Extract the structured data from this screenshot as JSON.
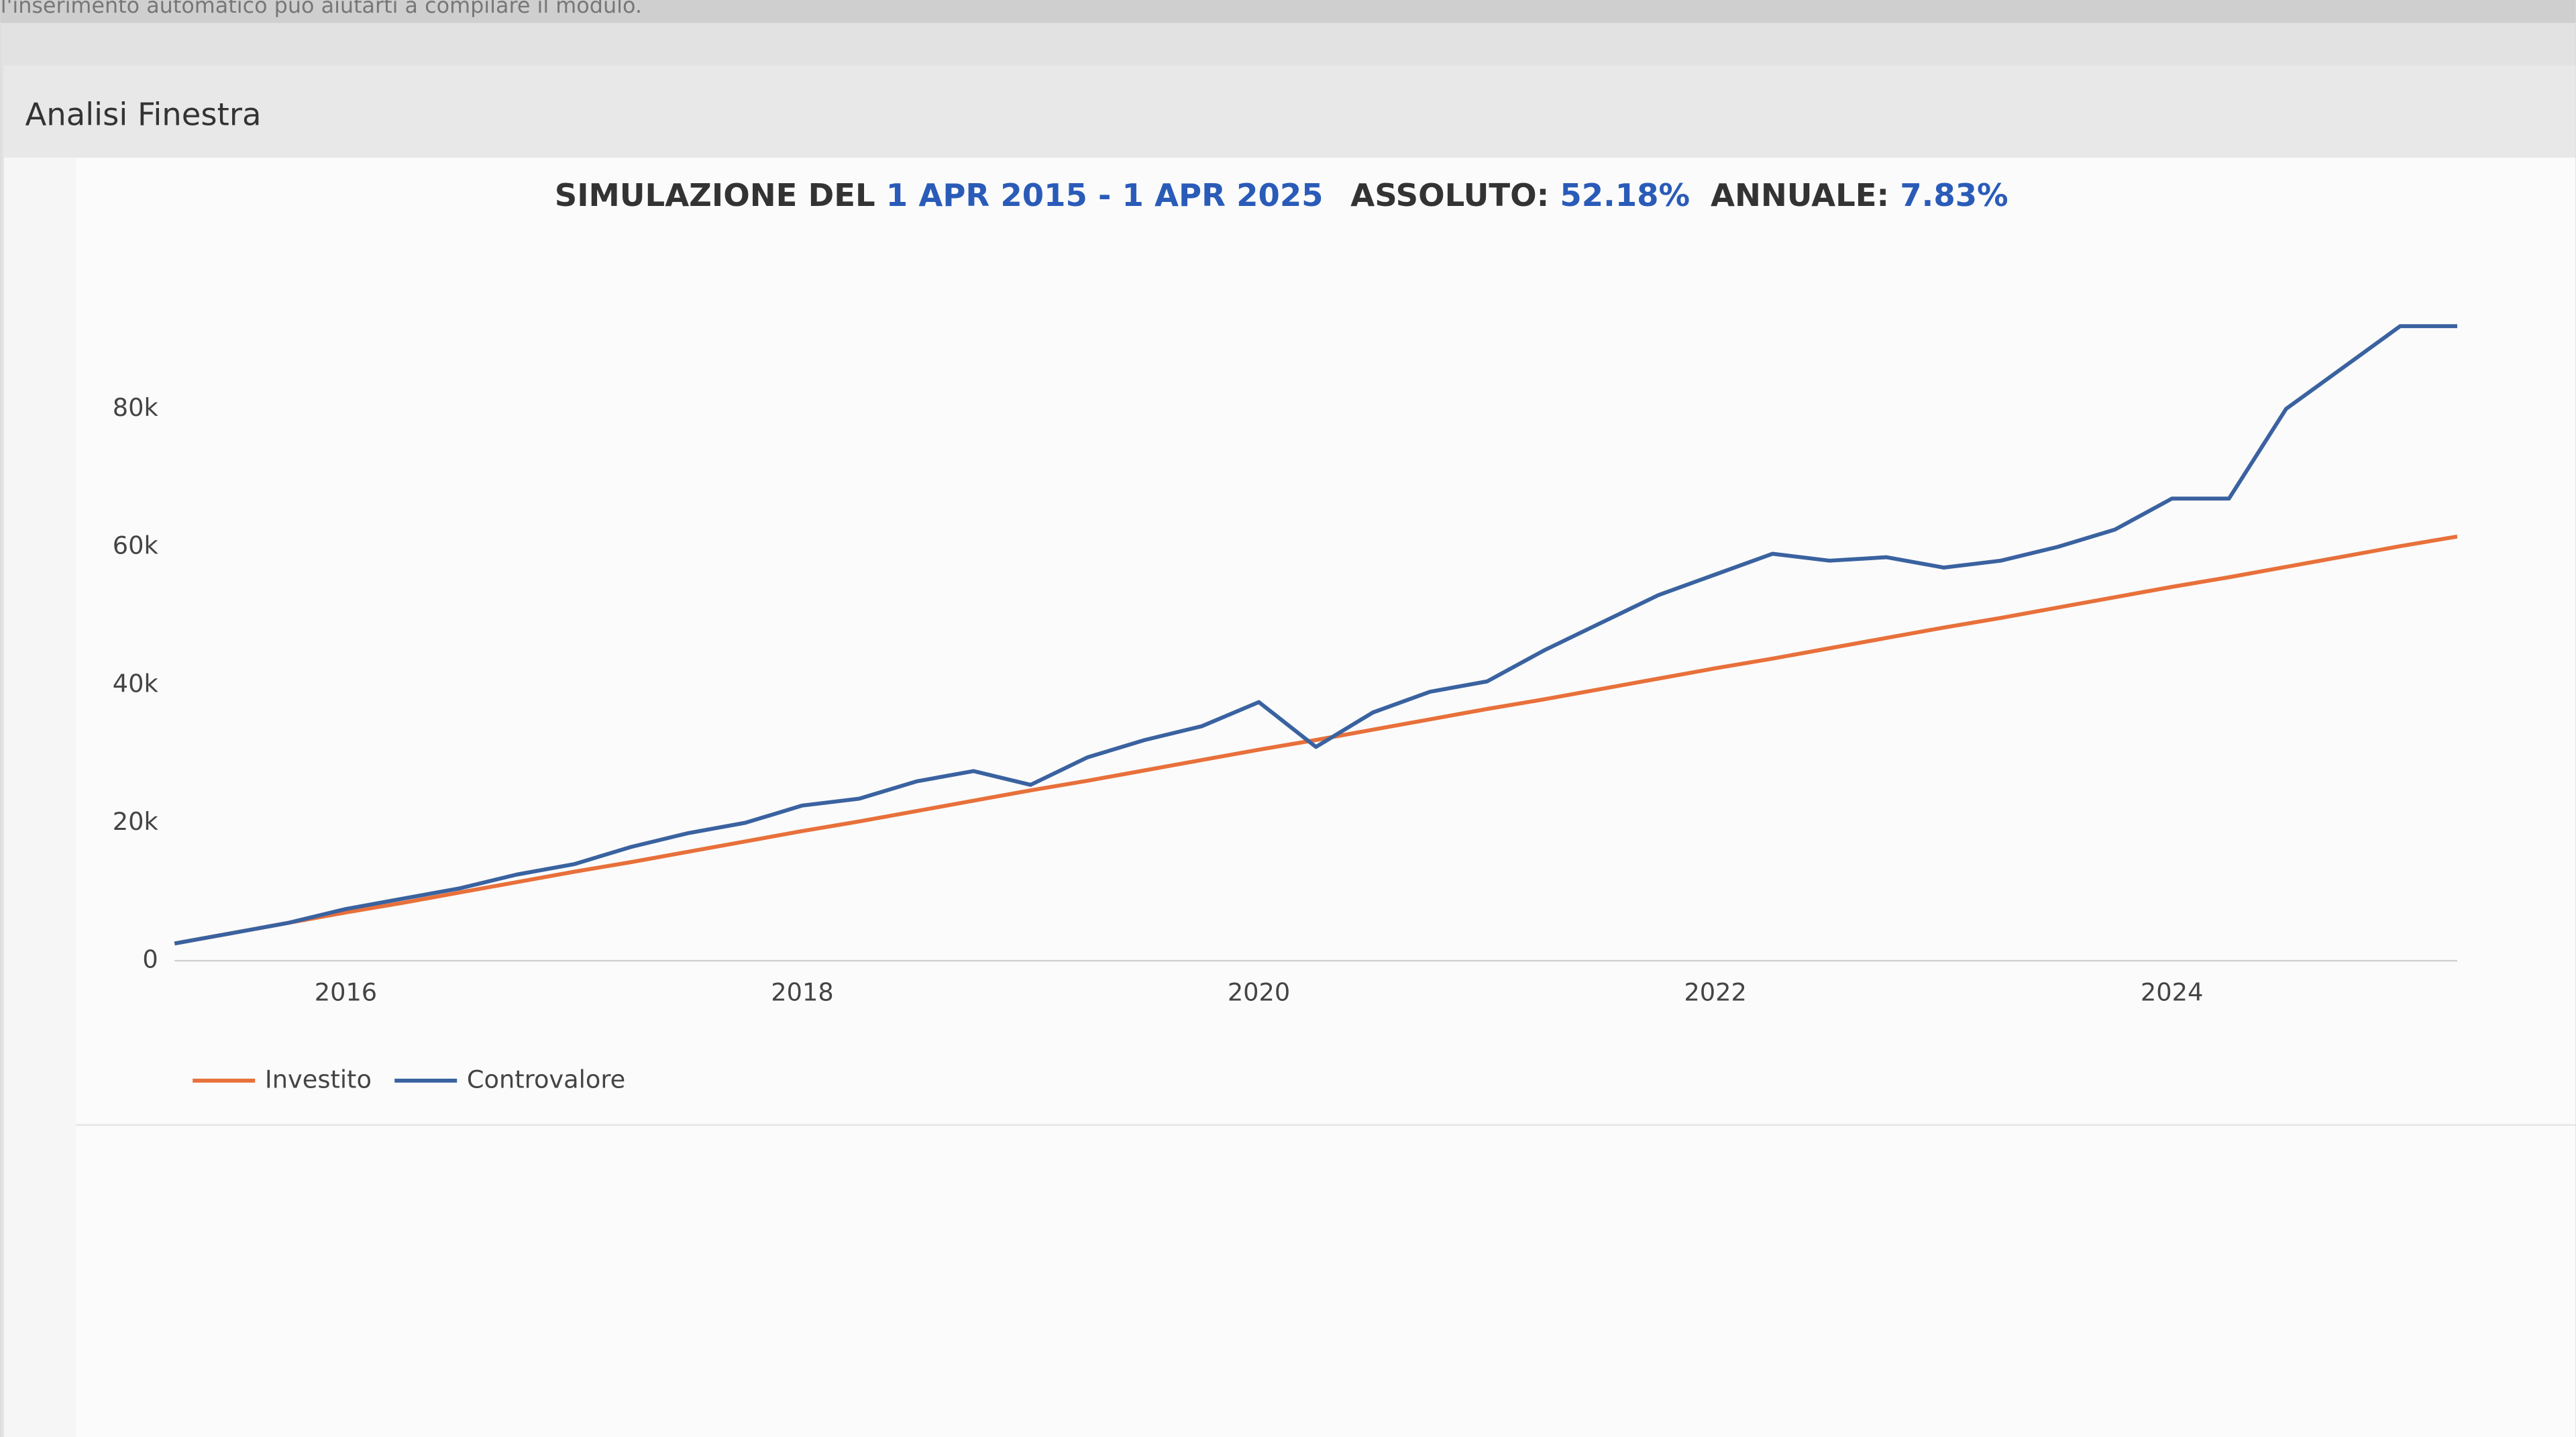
{
  "top_hint": "l'inserimento automatico può aiutarti a compilare il modulo.",
  "panel": {
    "title": "Analisi Finestra"
  },
  "chart_data": {
    "type": "line",
    "title": {
      "prefix": "SIMULAZIONE DEL",
      "period": "1 APR 2015 - 1 APR 2025",
      "absolute_label": "ASSOLUTO:",
      "absolute_value": "52.18%",
      "annual_label": "ANNUALE:",
      "annual_value": "7.83%"
    },
    "x": [
      2015.25,
      2015.5,
      2015.75,
      2016,
      2016.25,
      2016.5,
      2016.75,
      2017,
      2017.25,
      2017.5,
      2017.75,
      2018,
      2018.25,
      2018.5,
      2018.75,
      2019,
      2019.25,
      2019.5,
      2019.75,
      2020,
      2020.25,
      2020.5,
      2020.75,
      2021,
      2021.25,
      2021.5,
      2021.75,
      2022,
      2022.25,
      2022.5,
      2022.75,
      2023,
      2023.25,
      2023.5,
      2023.75,
      2024,
      2024.25,
      2024.5,
      2024.75,
      2025,
      2025.25
    ],
    "series": [
      {
        "name": "Investito",
        "color": "#e8703a",
        "values": [
          2500,
          4000,
          5500,
          7000,
          8400,
          9900,
          11400,
          12900,
          14300,
          15800,
          17300,
          18800,
          20200,
          21700,
          23200,
          24700,
          26100,
          27600,
          29100,
          30600,
          32000,
          33500,
          35000,
          36500,
          37900,
          39400,
          40900,
          42400,
          43800,
          45300,
          46800,
          48300,
          49700,
          51200,
          52700,
          54200,
          55600,
          57100,
          58600,
          60100,
          61500
        ]
      },
      {
        "name": "Controvalore",
        "color": "#3a62a0",
        "values": [
          2500,
          4000,
          5500,
          7500,
          9000,
          10500,
          12500,
          14000,
          16500,
          18500,
          20000,
          22500,
          23500,
          26000,
          27500,
          25500,
          29500,
          32000,
          34000,
          37500,
          31000,
          36000,
          39000,
          40500,
          45000,
          49000,
          53000,
          56000,
          59000,
          58000,
          58500,
          57000,
          58000,
          60000,
          62500,
          67000,
          67000,
          80000,
          86000,
          92000,
          92000
        ]
      }
    ],
    "xlim": [
      2015.25,
      2025.25
    ],
    "xticks": [
      2016,
      2018,
      2020,
      2022,
      2024
    ],
    "ylim": [
      0,
      100000
    ],
    "yticks": [
      0,
      {
        "value": 20000,
        "label": "20k"
      },
      {
        "value": 40000,
        "label": "40k"
      },
      {
        "value": 60000,
        "label": "60k"
      },
      {
        "value": 80000,
        "label": "80k"
      }
    ],
    "legend": "bottom-left"
  }
}
